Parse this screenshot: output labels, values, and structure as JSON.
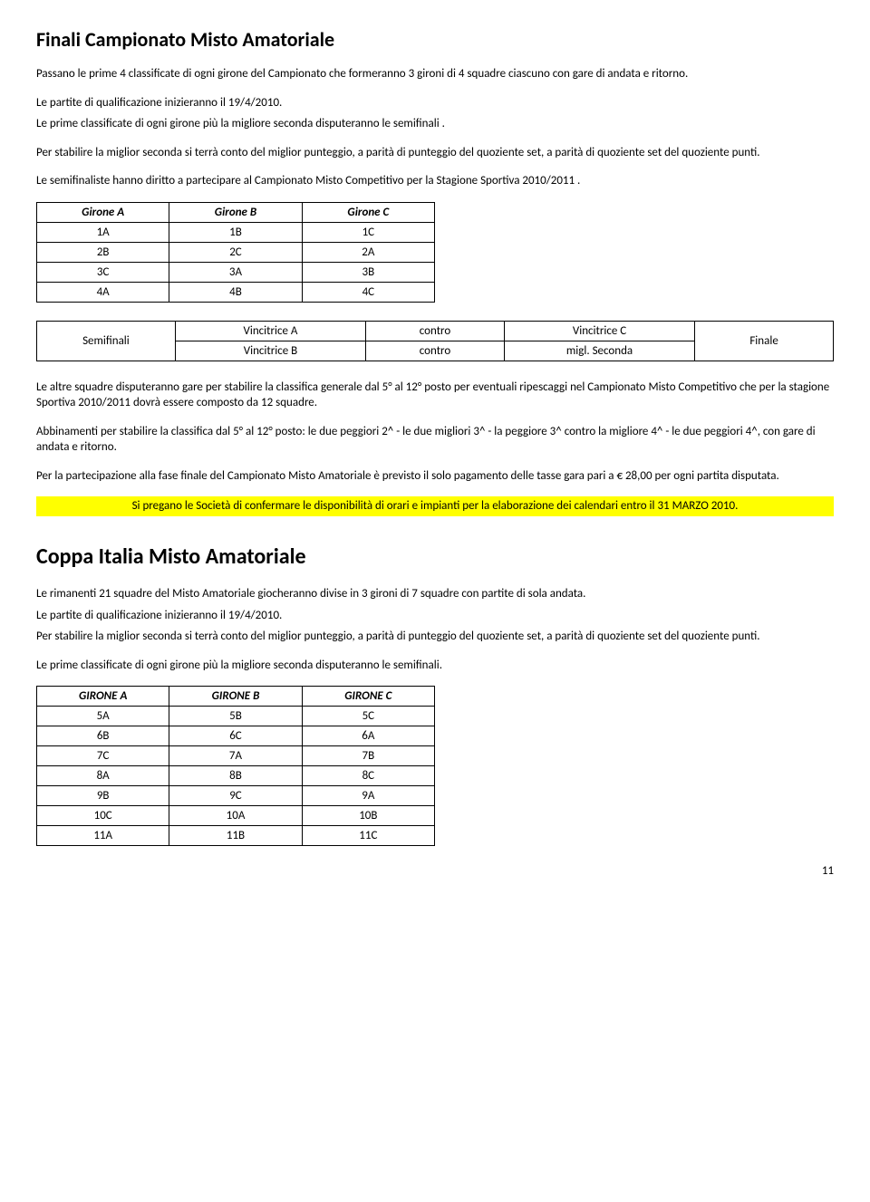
{
  "title1": "Finali Campionato Misto Amatoriale",
  "p1": "Passano le prime 4 classificate di ogni girone del Campionato che formeranno 3 gironi di 4 squadre ciascuno con gare di andata e ritorno.",
  "p2": "Le partite di qualificazione inizieranno il 19/4/2010.",
  "p3": "Le prime classificate di ogni girone più la migliore seconda disputeranno le semifinali .",
  "p4": "Per stabilire la miglior seconda si terrà conto del miglior punteggio, a parità di punteggio del quoziente set, a parità di quoziente set del quoziente punti.",
  "p5": "Le semifinaliste hanno diritto a partecipare al Campionato Misto Competitivo per la Stagione Sportiva 2010/2011 .",
  "gironi": {
    "headers": [
      "Girone A",
      "Girone B",
      "Girone C"
    ],
    "rows": [
      [
        "1A",
        "1B",
        "1C"
      ],
      [
        "2B",
        "2C",
        "2A"
      ],
      [
        "3C",
        "3A",
        "3B"
      ],
      [
        "4A",
        "4B",
        "4C"
      ]
    ]
  },
  "semi": {
    "label": "Semifinali",
    "r1": [
      "Vincitrice A",
      "contro",
      "Vincitrice C"
    ],
    "r2": [
      "Vincitrice B",
      "contro",
      "migl. Seconda"
    ],
    "final": "Finale"
  },
  "p6": "Le altre squadre disputeranno gare per stabilire la classifica generale dal 5° al 12° posto per eventuali ripescaggi nel Campionato Misto Competitivo che per la stagione Sportiva 2010/2011 dovrà essere composto da 12 squadre.",
  "p7": "Abbinamenti per stabilire la classifica dal 5° al 12° posto: le due peggiori 2^ - le due migliori 3^ - la peggiore 3^ contro la migliore 4^ - le due peggiori 4^, con gare di andata e ritorno.",
  "p8": "Per la partecipazione alla fase finale del Campionato Misto Amatoriale è previsto il solo pagamento delle tasse gara pari a € 28,00 per ogni partita disputata.",
  "hl": "Si pregano le Società di confermare le disponibilità di orari e impianti per la elaborazione dei calendari entro il 31 MARZO 2010.",
  "title2": "Coppa Italia Misto Amatoriale",
  "p9": "Le rimanenti 21 squadre del Misto Amatoriale giocheranno divise in 3 gironi di 7 squadre  con partite di sola andata.",
  "p10": "Le partite di qualificazione inizieranno il 19/4/2010.",
  "p11": "Per stabilire la miglior seconda si terrà conto del miglior punteggio, a parità di punteggio del quoziente set, a parità di quoziente set del quoziente punti.",
  "p12": "Le prime classificate di ogni girone più la migliore seconda disputeranno le semifinali.",
  "gironi2": {
    "headers": [
      "GIRONE A",
      "GIRONE B",
      "GIRONE C"
    ],
    "rows": [
      [
        "5A",
        "5B",
        "5C"
      ],
      [
        "6B",
        "6C",
        "6A"
      ],
      [
        "7C",
        "7A",
        "7B"
      ],
      [
        "8A",
        "8B",
        "8C"
      ],
      [
        "9B",
        "9C",
        "9A"
      ],
      [
        "10C",
        "10A",
        "10B"
      ],
      [
        "11A",
        "11B",
        "11C"
      ]
    ]
  },
  "pagenum": "11",
  "colors": {
    "highlight_bg": "#ffff00",
    "border": "#000000",
    "bg": "#ffffff",
    "text": "#000000"
  }
}
